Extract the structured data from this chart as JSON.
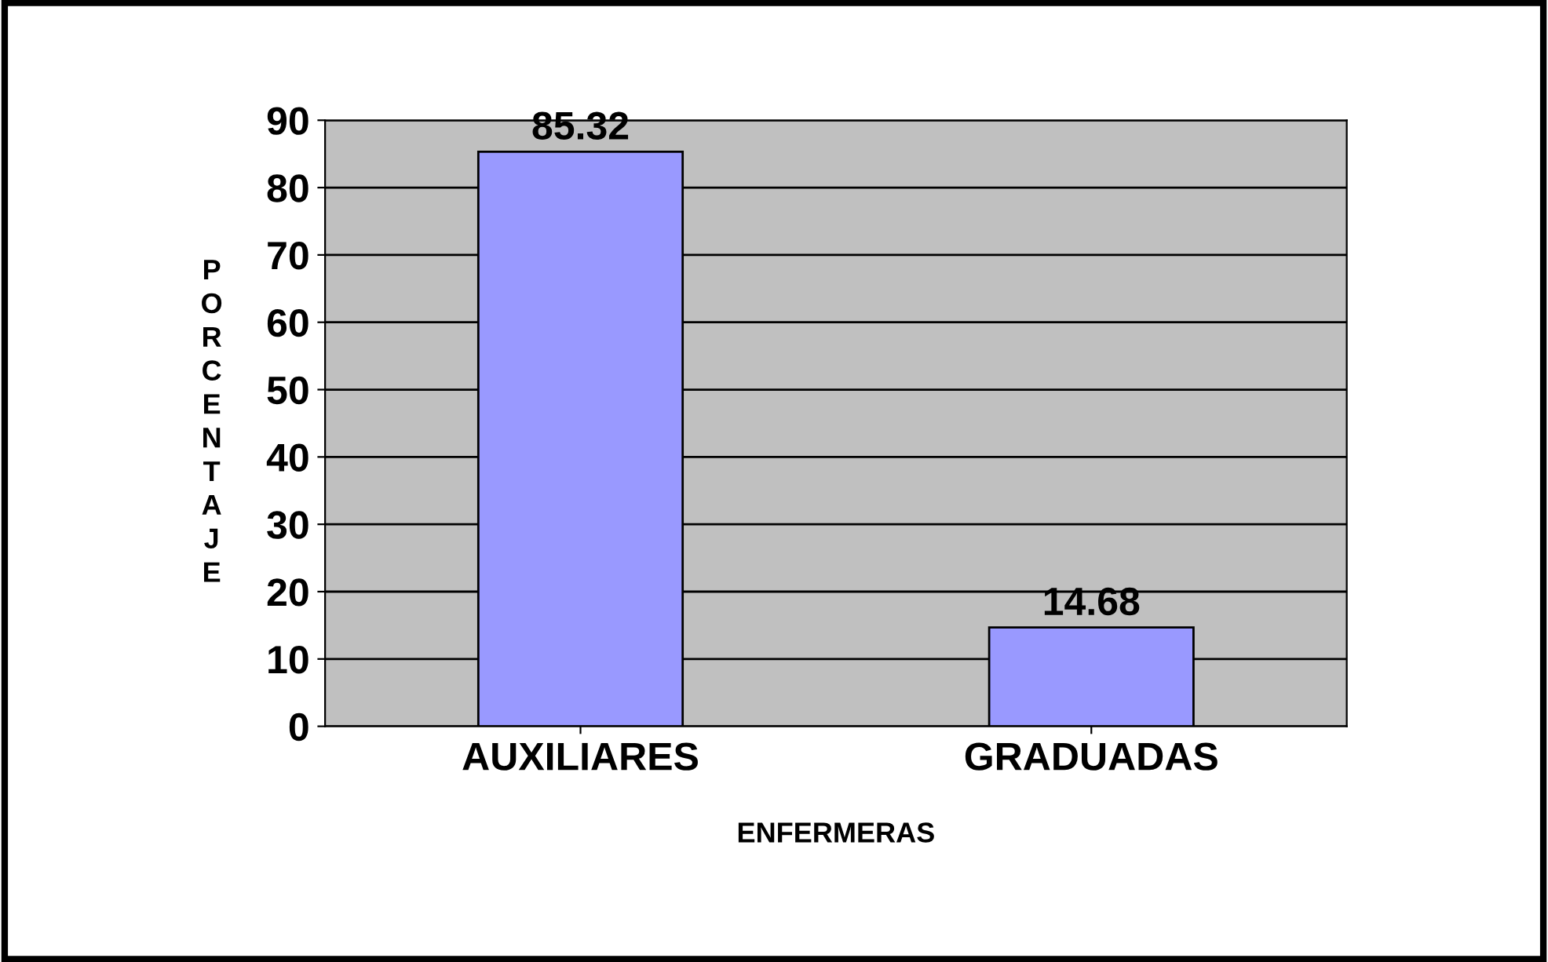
{
  "chart_data": {
    "type": "bar",
    "categories": [
      "AUXILIARES",
      "GRADUADAS"
    ],
    "values": [
      85.32,
      14.68
    ],
    "color": "#9999ff",
    "xlabel": "ENFERMERAS",
    "ylabel": "PORCENTAJE",
    "ylim": [
      0,
      90
    ],
    "yticks": [
      0,
      10,
      20,
      30,
      40,
      50,
      60,
      70,
      80,
      90
    ],
    "grid": "y",
    "data_labels": true,
    "legend": false
  }
}
